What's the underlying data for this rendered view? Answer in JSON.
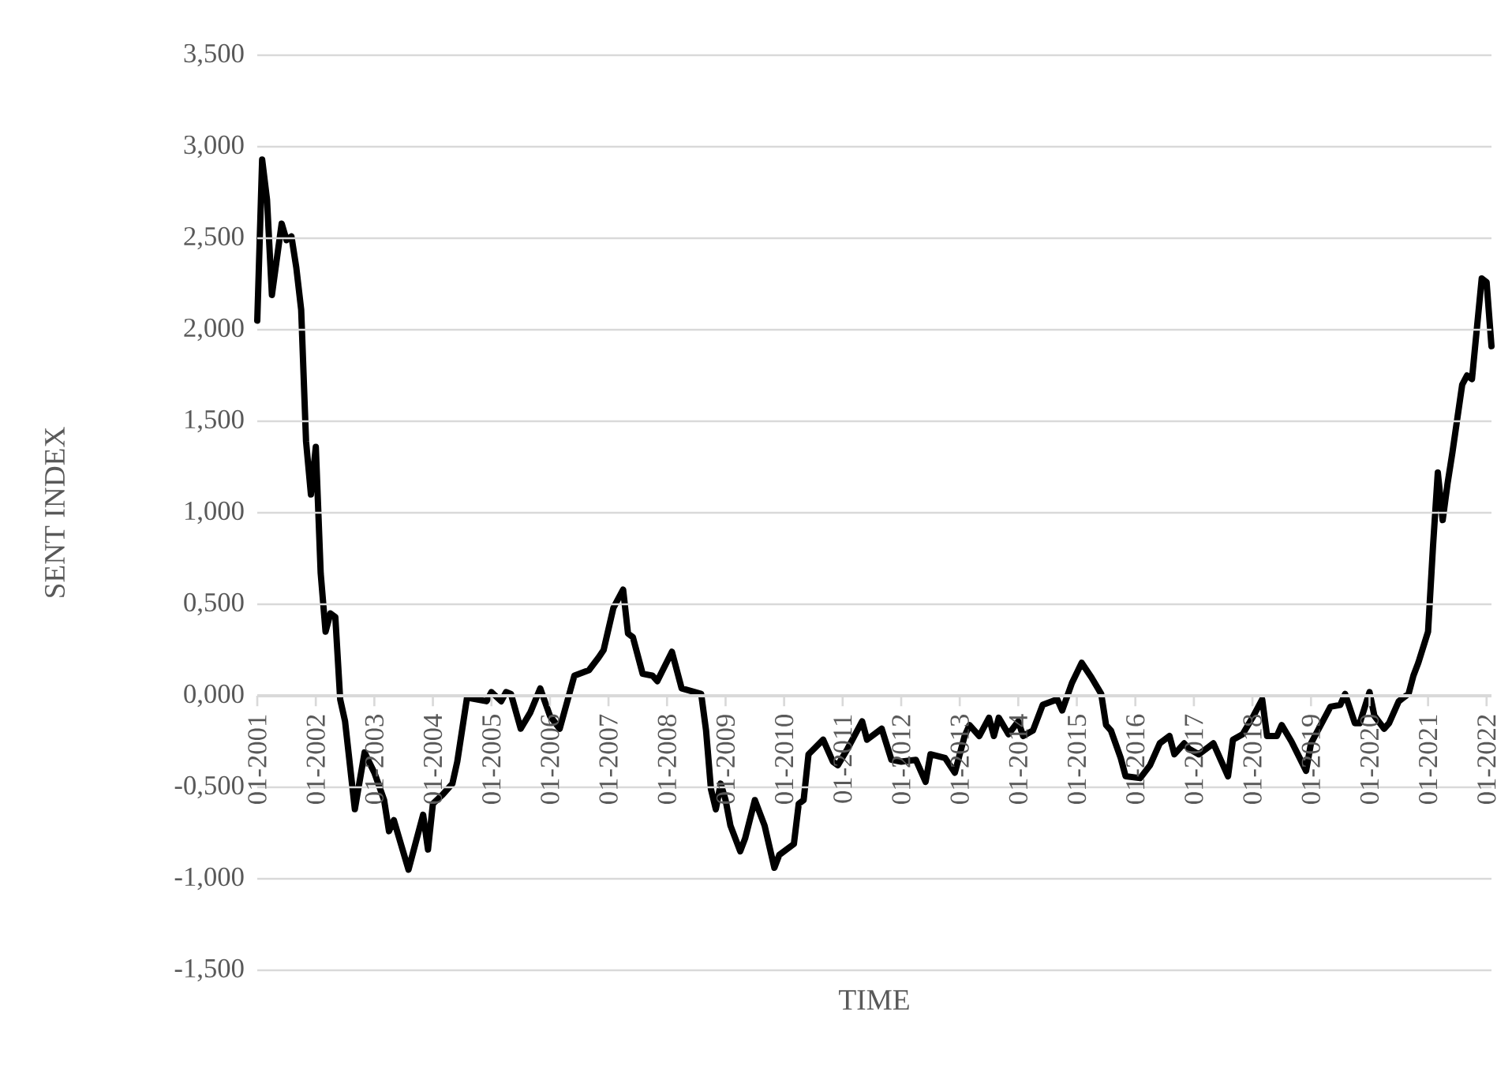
{
  "chart_data": {
    "type": "line",
    "xlabel": "TIME",
    "ylabel": "SENT INDEX",
    "color": "#000000",
    "grid": "y",
    "xlim": [
      "2001-01",
      "2022-02"
    ],
    "ylim": [
      -1.5,
      3.5
    ],
    "xticks": [
      {
        "value": "2001-01",
        "label": "01-2001"
      },
      {
        "value": "2002-01",
        "label": "01-2002"
      },
      {
        "value": "2003-01",
        "label": "01-2003"
      },
      {
        "value": "2004-01",
        "label": "01-2004"
      },
      {
        "value": "2005-01",
        "label": "01-2005"
      },
      {
        "value": "2006-01",
        "label": "01-2006"
      },
      {
        "value": "2007-01",
        "label": "01-2007"
      },
      {
        "value": "2008-01",
        "label": "01-2008"
      },
      {
        "value": "2009-01",
        "label": "01-2009"
      },
      {
        "value": "2010-01",
        "label": "01-2010"
      },
      {
        "value": "2011-01",
        "label": "01-2011"
      },
      {
        "value": "2012-01",
        "label": "01-2012"
      },
      {
        "value": "2013-01",
        "label": "01-2013"
      },
      {
        "value": "2014-01",
        "label": "01-2014"
      },
      {
        "value": "2015-01",
        "label": "01-2015"
      },
      {
        "value": "2016-01",
        "label": "01-2016"
      },
      {
        "value": "2017-01",
        "label": "01-2017"
      },
      {
        "value": "2018-01",
        "label": "01-2018"
      },
      {
        "value": "2019-01",
        "label": "01-2019"
      },
      {
        "value": "2020-01",
        "label": "01-2020"
      },
      {
        "value": "2021-01",
        "label": "01-2021"
      },
      {
        "value": "2022-01",
        "label": "01-2022"
      }
    ],
    "yticks": [
      {
        "value": -1.5,
        "label": "-1,500"
      },
      {
        "value": -1.0,
        "label": "-1,000"
      },
      {
        "value": -0.5,
        "label": "-0,500"
      },
      {
        "value": 0,
        "label": "0,000"
      },
      {
        "value": 0.5,
        "label": "0,500"
      },
      {
        "value": 1.0,
        "label": "1,000"
      },
      {
        "value": 1.5,
        "label": "1,500"
      },
      {
        "value": 2.0,
        "label": "2,000"
      },
      {
        "value": 2.5,
        "label": "2,500"
      },
      {
        "value": 3.0,
        "label": "3,000"
      },
      {
        "value": 3.5,
        "label": "3,500"
      }
    ],
    "x": [
      "2001-01",
      "2001-02",
      "2001-03",
      "2001-04",
      "2001-06",
      "2001-07",
      "2001-08",
      "2001-09",
      "2001-10",
      "2001-11",
      "2001-12",
      "2002-01",
      "2002-02",
      "2002-03",
      "2002-04",
      "2002-05",
      "2002-06",
      "2002-07",
      "2002-09",
      "2002-11",
      "2003-01",
      "2003-03",
      "2003-04",
      "2003-05",
      "2003-08",
      "2003-11",
      "2003-12",
      "2004-01",
      "2004-03",
      "2004-05",
      "2004-06",
      "2004-08",
      "2004-12",
      "2005-01",
      "2005-03",
      "2005-04",
      "2005-05",
      "2005-07",
      "2005-09",
      "2005-11",
      "2006-01",
      "2006-03",
      "2006-06",
      "2006-09",
      "2006-11",
      "2006-12",
      "2007-02",
      "2007-04",
      "2007-05",
      "2007-06",
      "2007-08",
      "2007-10",
      "2007-11",
      "2008-02",
      "2008-04",
      "2008-08",
      "2008-09",
      "2008-10",
      "2008-11",
      "2008-12",
      "2009-01",
      "2009-02",
      "2009-04",
      "2009-05",
      "2009-07",
      "2009-09",
      "2009-11",
      "2009-12",
      "2010-03",
      "2010-04",
      "2010-05",
      "2010-06",
      "2010-09",
      "2010-11",
      "2010-12",
      "2011-02",
      "2011-03",
      "2011-05",
      "2011-06",
      "2011-09",
      "2011-11",
      "2012-01",
      "2012-04",
      "2012-06",
      "2012-07",
      "2012-10",
      "2012-12",
      "2013-02",
      "2013-03",
      "2013-05",
      "2013-07",
      "2013-08",
      "2013-09",
      "2013-11",
      "2014-01",
      "2014-02",
      "2014-04",
      "2014-06",
      "2014-09",
      "2014-10",
      "2014-12",
      "2015-02",
      "2015-04",
      "2015-06",
      "2015-07",
      "2015-08",
      "2015-10",
      "2015-11",
      "2016-02",
      "2016-04",
      "2016-06",
      "2016-08",
      "2016-09",
      "2016-11",
      "2016-12",
      "2017-02",
      "2017-04",
      "2017-05",
      "2017-08",
      "2017-09",
      "2017-11",
      "2018-01",
      "2018-03",
      "2018-04",
      "2018-06",
      "2018-07",
      "2018-09",
      "2018-12",
      "2019-01",
      "2019-03",
      "2019-05",
      "2019-07",
      "2019-08",
      "2019-10",
      "2019-11",
      "2020-01",
      "2020-02",
      "2020-04",
      "2020-05",
      "2020-07",
      "2020-09",
      "2020-10",
      "2020-11",
      "2021-01",
      "2021-02",
      "2021-03",
      "2021-04",
      "2021-05",
      "2021-06",
      "2021-08",
      "2021-09",
      "2021-10",
      "2021-12",
      "2022-01",
      "2022-02"
    ],
    "values": [
      2.05,
      2.93,
      2.71,
      2.19,
      2.58,
      2.49,
      2.51,
      2.34,
      2.11,
      1.39,
      1.1,
      1.36,
      0.67,
      0.35,
      0.45,
      0.43,
      -0.02,
      -0.14,
      -0.62,
      -0.31,
      -0.42,
      -0.57,
      -0.74,
      -0.68,
      -0.95,
      -0.65,
      -0.84,
      -0.59,
      -0.54,
      -0.48,
      -0.36,
      -0.01,
      -0.03,
      0.02,
      -0.03,
      0.02,
      0.01,
      -0.18,
      -0.09,
      0.04,
      -0.11,
      -0.18,
      0.11,
      0.14,
      0.21,
      0.25,
      0.48,
      0.58,
      0.34,
      0.32,
      0.12,
      0.11,
      0.08,
      0.24,
      0.04,
      0.01,
      -0.19,
      -0.51,
      -0.62,
      -0.48,
      -0.57,
      -0.71,
      -0.85,
      -0.78,
      -0.57,
      -0.71,
      -0.94,
      -0.87,
      -0.81,
      -0.59,
      -0.57,
      -0.32,
      -0.24,
      -0.36,
      -0.38,
      -0.29,
      -0.24,
      -0.14,
      -0.24,
      -0.18,
      -0.35,
      -0.36,
      -0.35,
      -0.47,
      -0.32,
      -0.34,
      -0.42,
      -0.22,
      -0.16,
      -0.22,
      -0.12,
      -0.22,
      -0.12,
      -0.21,
      -0.14,
      -0.22,
      -0.19,
      -0.05,
      -0.02,
      -0.08,
      0.07,
      0.18,
      0.1,
      0.01,
      -0.16,
      -0.19,
      -0.34,
      -0.44,
      -0.45,
      -0.38,
      -0.26,
      -0.22,
      -0.32,
      -0.26,
      -0.29,
      -0.32,
      -0.28,
      -0.26,
      -0.44,
      -0.24,
      -0.21,
      -0.12,
      -0.02,
      -0.22,
      -0.22,
      -0.16,
      -0.25,
      -0.41,
      -0.26,
      -0.16,
      -0.06,
      -0.05,
      0.01,
      -0.15,
      -0.15,
      0.02,
      -0.11,
      -0.18,
      -0.15,
      -0.03,
      0.01,
      0.11,
      0.18,
      0.35,
      0.81,
      1.22,
      0.96,
      1.16,
      1.33,
      1.7,
      1.75,
      1.73,
      2.28,
      2.26,
      1.91
    ]
  }
}
